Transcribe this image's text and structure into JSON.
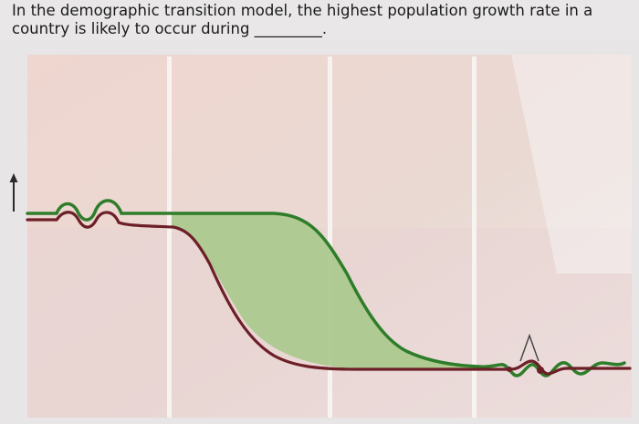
{
  "question": {
    "text": "In the demographic transition model, the highest population growth rate in a country is likely to occur during",
    "blank": "_________."
  },
  "figure": {
    "colors": {
      "birth_rate_line": "#2f7d2a",
      "death_rate_line": "#6e1f26",
      "natural_increase_fill": "#a8c98a",
      "stage_divider": "#f4f1ef",
      "paper": "#ecd7cf",
      "background": "#e9e7e8"
    }
  }
}
